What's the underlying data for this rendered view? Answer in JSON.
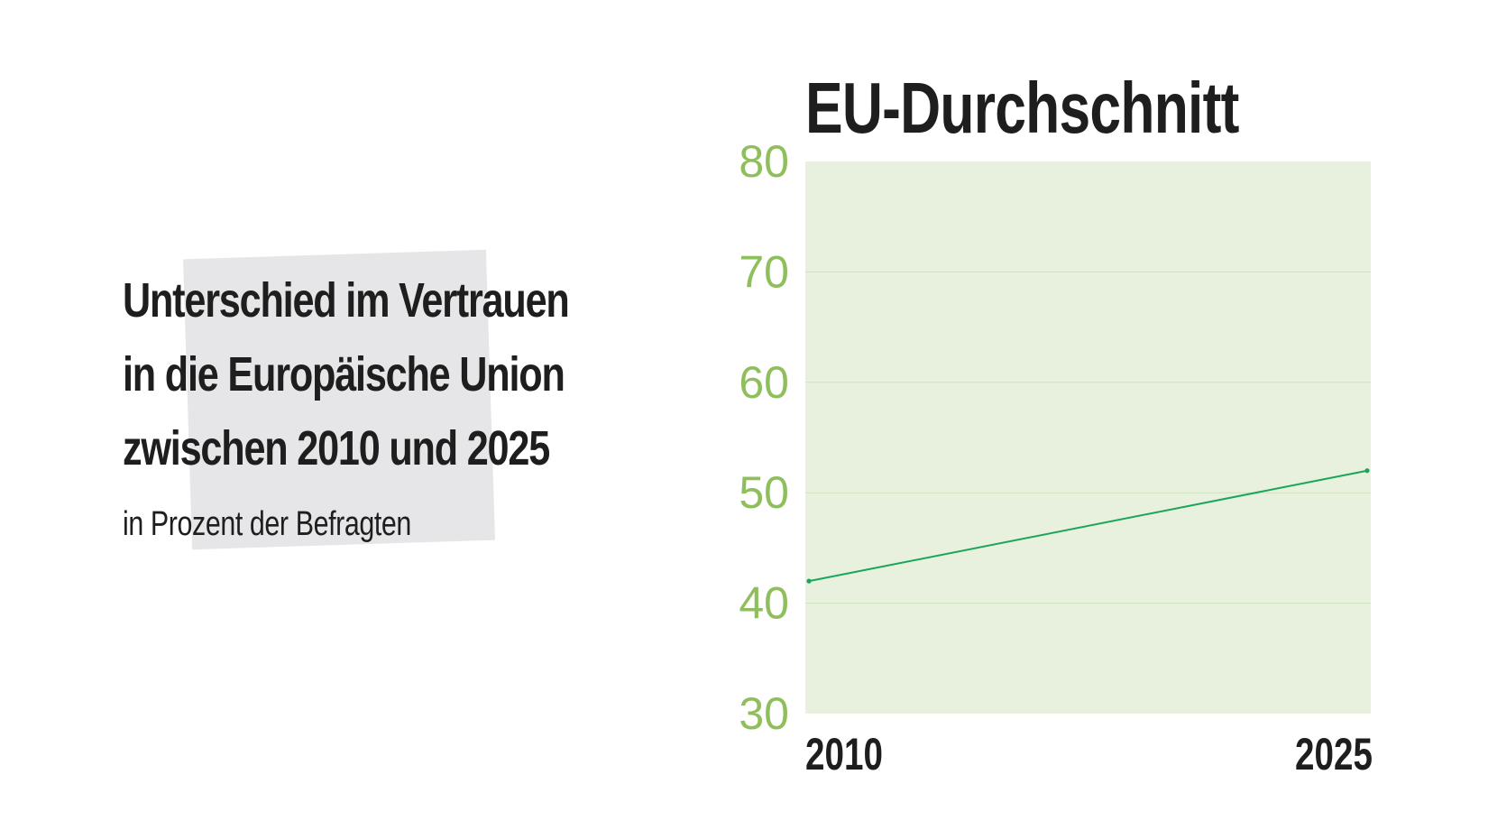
{
  "heading": {
    "lines": [
      "Unterschied im Vertrauen",
      "in die Europäische Union",
      "zwischen 2010 und 2025"
    ],
    "subtitle": "in Prozent der Befragten"
  },
  "colors": {
    "plot_background": "#e7f1de",
    "gridline": "#cfe3bd",
    "line": "#1aa55a",
    "ytick": "#8fbf5c",
    "text": "#1e1e1e",
    "highlight_box": "#e6e6e8"
  },
  "chart_data": {
    "type": "line",
    "title": "EU-Durchschnitt",
    "xlabel": "",
    "ylabel": "",
    "x": [
      2010,
      2025
    ],
    "x_tick_labels": [
      "2010",
      "2025"
    ],
    "series": [
      {
        "values": [
          42,
          52
        ]
      }
    ],
    "ylim": [
      30,
      80
    ],
    "y_ticks": [
      30,
      40,
      50,
      60,
      70,
      80
    ],
    "grid": true,
    "legend": "none"
  }
}
